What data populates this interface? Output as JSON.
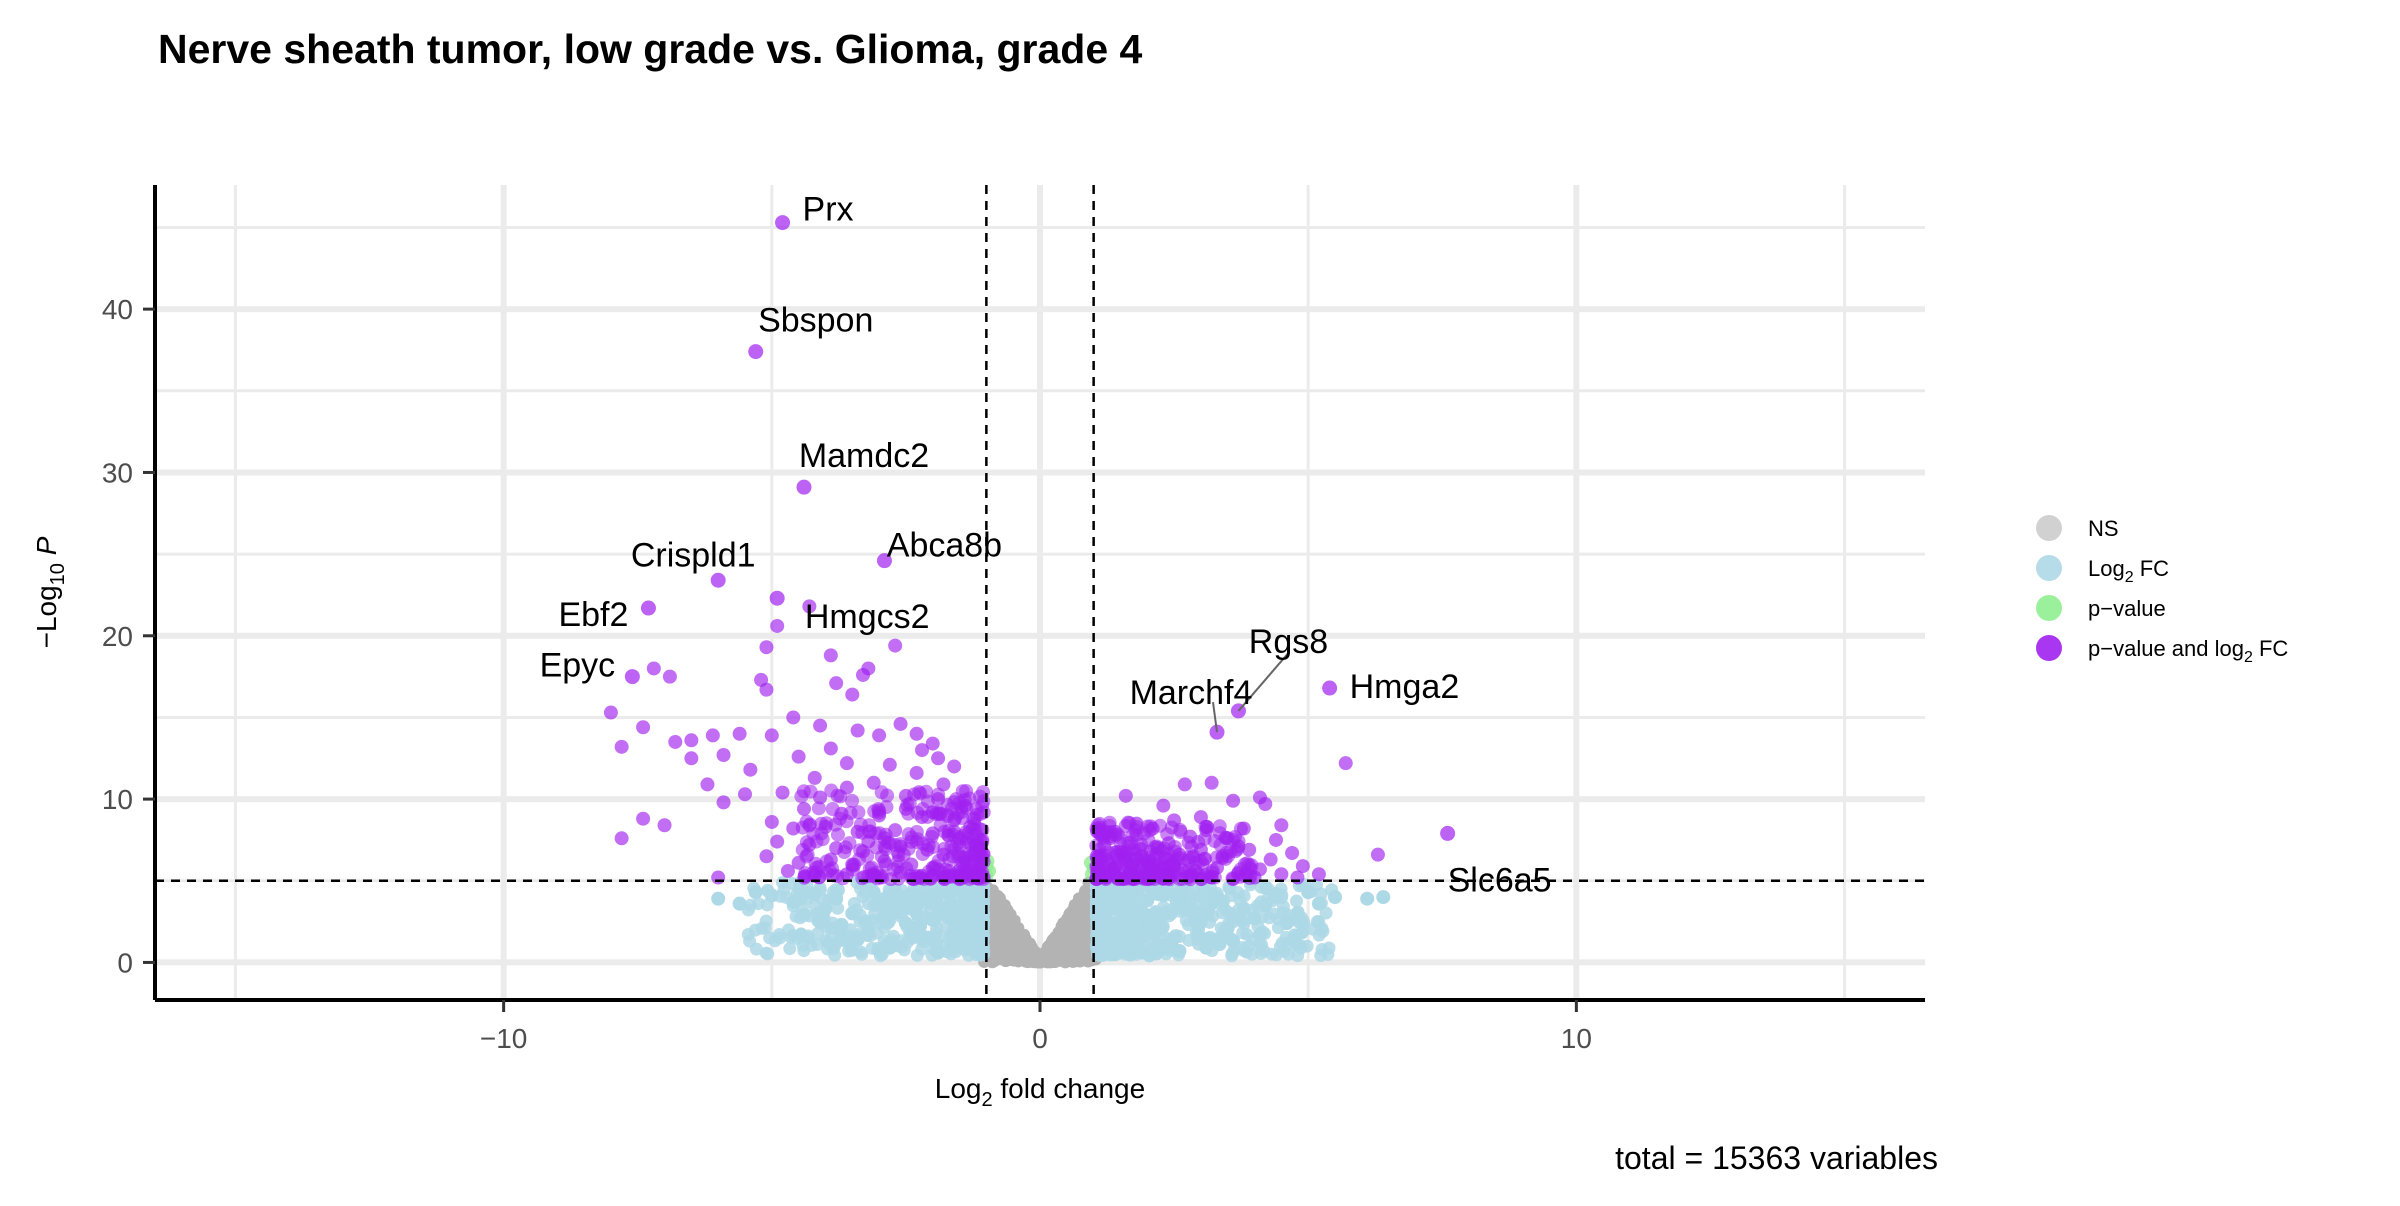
{
  "chart_data": {
    "type": "scatter",
    "title": "Nerve sheath tumor, low grade vs. Glioma, grade 4",
    "caption": "total = 15363 variables",
    "xlabel": {
      "main": "Log",
      "sub": "2",
      "rest": " fold change"
    },
    "ylabel": {
      "minus": "−",
      "main": "Log",
      "sub": "10",
      "italic": "P"
    },
    "xlim": [
      -16.5,
      16.5
    ],
    "ylim": [
      -2.3,
      47.6
    ],
    "x_ticks": [
      -10,
      0,
      10
    ],
    "x_tick_labels": [
      "−10",
      "0",
      "10"
    ],
    "y_ticks": [
      0,
      10,
      20,
      30,
      40
    ],
    "y_tick_labels": [
      "0",
      "10",
      "20",
      "30",
      "40"
    ],
    "fc_cutoff": 1,
    "p_cutoff": 5,
    "grid": true,
    "legend_position": "right",
    "legend": [
      {
        "key": "ns",
        "parts": [
          {
            "t": "NS"
          }
        ]
      },
      {
        "key": "fc",
        "parts": [
          {
            "t": "Log"
          },
          {
            "t": "2",
            "sub": true
          },
          {
            "t": " FC"
          }
        ]
      },
      {
        "key": "p",
        "parts": [
          {
            "t": "p−value"
          }
        ]
      },
      {
        "key": "both",
        "parts": [
          {
            "t": "p−value and log"
          },
          {
            "t": "2",
            "sub": true
          },
          {
            "t": " FC"
          }
        ]
      }
    ],
    "colors": {
      "ns": "#b3b3b3",
      "fc": "#add8e6",
      "p": "#90ee90",
      "both": "#a020f0"
    },
    "total_variables": 15363,
    "labeled_points": [
      {
        "gene": "Prx",
        "x": -4.8,
        "y": 45.3
      },
      {
        "gene": "Sbspon",
        "x": -5.3,
        "y": 37.4
      },
      {
        "gene": "Mamdc2",
        "x": -4.4,
        "y": 29.1
      },
      {
        "gene": "Abca8b",
        "x": -2.9,
        "y": 24.6
      },
      {
        "gene": "Crispld1",
        "x": -6.0,
        "y": 23.4
      },
      {
        "gene": "Ebf2",
        "x": -7.3,
        "y": 21.7
      },
      {
        "gene": "Hmgcs2",
        "x": -4.9,
        "y": 22.3
      },
      {
        "gene": "Epyc",
        "x": -7.6,
        "y": 17.5
      },
      {
        "gene": "Rgs8",
        "x": 3.7,
        "y": 15.4
      },
      {
        "gene": "Marchf4",
        "x": 3.3,
        "y": 14.1
      },
      {
        "gene": "Hmga2",
        "x": 5.4,
        "y": 16.8
      },
      {
        "gene": "Slc6a5",
        "x": 7.6,
        "y": 7.9
      }
    ],
    "highlighted_points": [
      [
        -4.3,
        21.8
      ],
      [
        -4.9,
        20.6
      ],
      [
        -5.1,
        19.3
      ],
      [
        -2.7,
        19.4
      ],
      [
        -3.2,
        18.0
      ],
      [
        -3.9,
        18.8
      ],
      [
        -6.9,
        17.5
      ],
      [
        -7.2,
        18.0
      ],
      [
        -5.2,
        17.3
      ],
      [
        -3.3,
        17.6
      ],
      [
        -5.1,
        16.7
      ],
      [
        -3.8,
        17.1
      ],
      [
        -3.5,
        16.4
      ],
      [
        -8.0,
        15.3
      ],
      [
        -7.4,
        14.4
      ],
      [
        -6.8,
        13.5
      ],
      [
        -6.5,
        13.6
      ],
      [
        -6.1,
        13.9
      ],
      [
        -5.6,
        14.0
      ],
      [
        -4.6,
        15.0
      ],
      [
        -4.1,
        14.5
      ],
      [
        -5.0,
        13.9
      ],
      [
        -2.6,
        14.6
      ],
      [
        -3.4,
        14.2
      ],
      [
        -3.0,
        13.9
      ],
      [
        -2.3,
        14.0
      ],
      [
        -7.8,
        13.2
      ],
      [
        -6.5,
        12.5
      ],
      [
        -5.9,
        12.7
      ],
      [
        -5.4,
        11.8
      ],
      [
        -4.5,
        12.6
      ],
      [
        -3.9,
        13.1
      ],
      [
        -2.0,
        13.4
      ],
      [
        -1.6,
        12.0
      ],
      [
        -1.8,
        10.9
      ],
      [
        -6.2,
        10.9
      ],
      [
        -5.5,
        10.3
      ],
      [
        -5.9,
        9.8
      ],
      [
        -7.4,
        8.8
      ],
      [
        -7.8,
        7.6
      ],
      [
        -7.0,
        8.4
      ],
      [
        -6.0,
        5.2
      ],
      [
        -2.3,
        11.6
      ],
      [
        -2.8,
        12.1
      ],
      [
        -3.6,
        10.7
      ],
      [
        -4.8,
        10.4
      ],
      [
        -4.2,
        11.3
      ],
      [
        -3.1,
        11.0
      ],
      [
        -2.5,
        10.2
      ],
      [
        -1.9,
        10.0
      ],
      [
        -1.4,
        9.6
      ],
      [
        -4.4,
        9.4
      ],
      [
        -3.7,
        9.1
      ],
      [
        -3.0,
        9.0
      ],
      [
        -2.2,
        8.9
      ],
      [
        -1.6,
        8.7
      ],
      [
        -5.0,
        8.6
      ],
      [
        -4.6,
        8.2
      ],
      [
        -4.0,
        8.3
      ],
      [
        -3.4,
        8.0
      ],
      [
        -2.7,
        8.1
      ],
      [
        -2.0,
        7.9
      ],
      [
        -1.5,
        7.6
      ],
      [
        -1.2,
        7.2
      ],
      [
        -4.9,
        7.4
      ],
      [
        -4.3,
        7.2
      ],
      [
        -3.8,
        7.0
      ],
      [
        -3.2,
        7.4
      ],
      [
        -2.6,
        7.1
      ],
      [
        -2.1,
        6.9
      ],
      [
        -1.8,
        6.6
      ],
      [
        -1.4,
        6.4
      ],
      [
        -1.1,
        6.0
      ],
      [
        -5.1,
        6.5
      ],
      [
        -4.5,
        6.1
      ],
      [
        -3.9,
        6.3
      ],
      [
        -3.5,
        6.0
      ],
      [
        -2.9,
        6.2
      ],
      [
        -2.4,
        6.0
      ],
      [
        -2.0,
        5.8
      ],
      [
        -1.7,
        5.6
      ],
      [
        -1.3,
        5.4
      ],
      [
        -4.7,
        5.6
      ],
      [
        -4.2,
        5.3
      ],
      [
        -3.6,
        5.4
      ],
      [
        -3.1,
        5.3
      ],
      [
        -2.6,
        5.5
      ],
      [
        -2.2,
        5.3
      ],
      [
        -1.8,
        5.2
      ],
      [
        -1.5,
        5.1
      ],
      [
        -1.2,
        5.2
      ],
      [
        -3.3,
        6.8
      ],
      [
        -2.9,
        7.6
      ],
      [
        -2.5,
        9.4
      ],
      [
        -3.6,
        12.2
      ],
      [
        -4.1,
        10.1
      ],
      [
        -2.0,
        9.2
      ],
      [
        -1.6,
        8.0
      ],
      [
        -1.3,
        8.3
      ],
      [
        -1.1,
        6.9
      ],
      [
        -1.9,
        12.5
      ],
      [
        -2.2,
        13.0
      ],
      [
        3.0,
        8.9
      ],
      [
        2.7,
        10.9
      ],
      [
        2.5,
        8.7
      ],
      [
        4.2,
        9.7
      ],
      [
        4.5,
        8.4
      ],
      [
        3.6,
        9.9
      ],
      [
        1.6,
        10.2
      ],
      [
        1.8,
        8.5
      ],
      [
        3.2,
        11.0
      ],
      [
        2.3,
        9.6
      ],
      [
        4.1,
        10.1
      ],
      [
        1.4,
        8.0
      ],
      [
        3.8,
        8.2
      ],
      [
        4.7,
        6.7
      ],
      [
        4.9,
        5.9
      ],
      [
        5.2,
        5.4
      ],
      [
        6.3,
        6.6
      ],
      [
        5.7,
        12.2
      ],
      [
        1.2,
        7.2
      ],
      [
        1.5,
        6.8
      ],
      [
        1.9,
        6.5
      ],
      [
        2.2,
        7.0
      ],
      [
        2.6,
        6.6
      ],
      [
        3.0,
        6.9
      ],
      [
        3.4,
        6.4
      ],
      [
        3.9,
        6.9
      ],
      [
        4.3,
        6.3
      ],
      [
        1.3,
        6.0
      ],
      [
        1.7,
        5.9
      ],
      [
        2.1,
        5.7
      ],
      [
        2.5,
        5.9
      ],
      [
        2.9,
        5.6
      ],
      [
        3.3,
        5.8
      ],
      [
        3.7,
        5.5
      ],
      [
        4.1,
        5.7
      ],
      [
        4.5,
        5.4
      ],
      [
        1.1,
        5.3
      ],
      [
        1.6,
        5.2
      ],
      [
        2.0,
        5.3
      ],
      [
        2.4,
        5.2
      ],
      [
        2.8,
        5.1
      ],
      [
        3.2,
        5.2
      ],
      [
        3.6,
        5.1
      ],
      [
        4.0,
        5.2
      ],
      [
        4.8,
        5.2
      ],
      [
        1.8,
        7.8
      ],
      [
        2.8,
        7.7
      ],
      [
        3.5,
        7.6
      ],
      [
        2.1,
        8.2
      ],
      [
        3.1,
        8.1
      ],
      [
        2.4,
        7.3
      ],
      [
        3.7,
        7.1
      ],
      [
        4.4,
        7.5
      ],
      [
        1.3,
        7.6
      ]
    ],
    "p_only_points": [
      [
        -1.0,
        5.3
      ],
      [
        -0.95,
        5.6
      ],
      [
        -1.0,
        5.9
      ],
      [
        0.97,
        5.4
      ],
      [
        1.0,
        5.8
      ],
      [
        0.95,
        6.1
      ],
      [
        -0.98,
        6.2
      ]
    ],
    "fc_only_points": [
      [
        -6.0,
        3.9
      ],
      [
        -5.6,
        3.6
      ],
      [
        -5.0,
        4.1
      ],
      [
        -4.6,
        3.7
      ],
      [
        -4.2,
        4.2
      ],
      [
        -4.0,
        3.3
      ],
      [
        -3.7,
        2.3
      ],
      [
        -3.4,
        1.4
      ],
      [
        -3.1,
        4.3
      ],
      [
        -2.9,
        2.8
      ],
      [
        -2.6,
        3.5
      ],
      [
        -2.4,
        1.8
      ],
      [
        -2.2,
        4.0
      ],
      [
        -2.0,
        2.6
      ],
      [
        -1.8,
        3.1
      ],
      [
        -1.6,
        1.1
      ],
      [
        -1.4,
        3.8
      ],
      [
        -1.2,
        2.2
      ],
      [
        -1.1,
        4.4
      ],
      [
        -3.8,
        3.9
      ],
      [
        -3.2,
        2.0
      ],
      [
        -2.8,
        0.9
      ],
      [
        -2.3,
        3.0
      ],
      [
        -1.9,
        0.6
      ],
      [
        -1.5,
        2.5
      ],
      [
        -3.5,
        3.0
      ],
      [
        -4.4,
        2.9
      ],
      [
        -2.1,
        1.5
      ],
      [
        -1.3,
        1.0
      ],
      [
        -2.7,
        4.4
      ],
      [
        -5.3,
        4.3
      ],
      [
        -1.7,
        4.2
      ],
      [
        -3.0,
        3.6
      ],
      [
        -2.5,
        2.4
      ],
      [
        -1.2,
        3.4
      ],
      [
        1.1,
        4.3
      ],
      [
        1.3,
        2.4
      ],
      [
        1.5,
        3.7
      ],
      [
        1.7,
        1.2
      ],
      [
        1.9,
        3.1
      ],
      [
        2.1,
        2.0
      ],
      [
        2.3,
        4.1
      ],
      [
        2.5,
        1.5
      ],
      [
        2.7,
        3.4
      ],
      [
        2.9,
        2.6
      ],
      [
        3.1,
        0.9
      ],
      [
        3.3,
        4.0
      ],
      [
        3.5,
        2.1
      ],
      [
        3.8,
        3.3
      ],
      [
        4.1,
        1.7
      ],
      [
        4.4,
        4.2
      ],
      [
        4.8,
        3.0
      ],
      [
        5.2,
        3.6
      ],
      [
        5.5,
        4.0
      ],
      [
        4.6,
        2.4
      ],
      [
        5.0,
        4.3
      ],
      [
        6.1,
        3.9
      ],
      [
        6.4,
        4.0
      ],
      [
        1.2,
        1.6
      ],
      [
        1.4,
        0.5
      ],
      [
        2.0,
        3.8
      ],
      [
        2.6,
        0.7
      ],
      [
        3.0,
        2.9
      ],
      [
        3.6,
        1.3
      ],
      [
        4.2,
        3.5
      ],
      [
        1.8,
        4.4
      ],
      [
        2.2,
        1.1
      ],
      [
        3.2,
        3.6
      ],
      [
        4.0,
        2.7
      ]
    ]
  }
}
